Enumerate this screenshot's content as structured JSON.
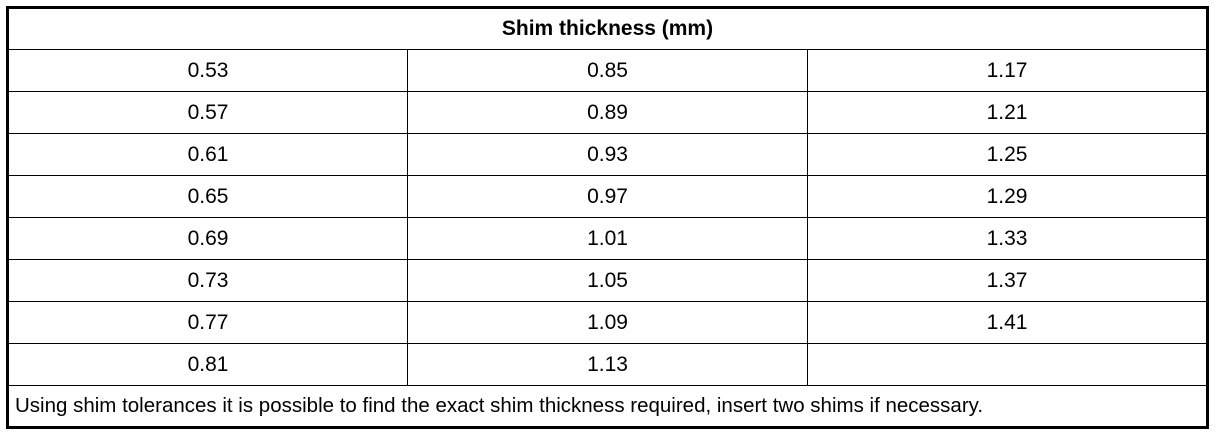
{
  "table": {
    "title": "Shim thickness (mm)",
    "rows": [
      [
        "0.53",
        "0.85",
        "1.17"
      ],
      [
        "0.57",
        "0.89",
        "1.21"
      ],
      [
        "0.61",
        "0.93",
        "1.25"
      ],
      [
        "0.65",
        "0.97",
        "1.29"
      ],
      [
        "0.69",
        "1.01",
        "1.33"
      ],
      [
        "0.73",
        "1.05",
        "1.37"
      ],
      [
        "0.77",
        "1.09",
        "1.41"
      ],
      [
        "0.81",
        "1.13"
      ]
    ],
    "note": "Using shim tolerances it is possible to find the exact shim thickness required, insert two shims if necessary."
  }
}
